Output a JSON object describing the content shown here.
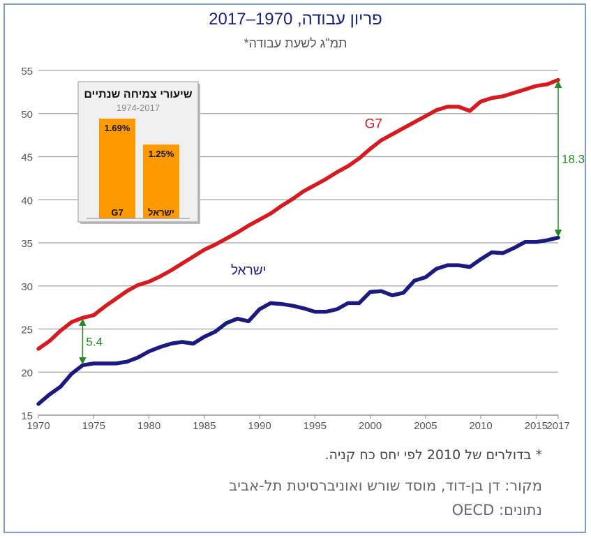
{
  "header": {
    "title": "פריון עבודה, 1970–2017",
    "subtitle": "תמ\"ג לשעת עבודה*"
  },
  "colors": {
    "g7": "#d71920",
    "israel": "#1a1a80",
    "annotation": "#228b22",
    "inset_bar": "#ff9900",
    "grid": "#a0a0a0"
  },
  "chart_data": [
    {
      "type": "line",
      "title": "",
      "xlabel": "",
      "ylabel": "",
      "xlim": [
        1970,
        2017
      ],
      "ylim": [
        15,
        55
      ],
      "x_ticks": [
        "1970",
        "1975",
        "1980",
        "1985",
        "1990",
        "1995",
        "2000",
        "2005",
        "2010",
        "2015",
        "2017"
      ],
      "y_ticks": [
        "15",
        "20",
        "25",
        "30",
        "35",
        "40",
        "45",
        "50",
        "55"
      ],
      "grid": true,
      "x": [
        1970,
        1971,
        1972,
        1973,
        1974,
        1975,
        1976,
        1977,
        1978,
        1979,
        1980,
        1981,
        1982,
        1983,
        1984,
        1985,
        1986,
        1987,
        1988,
        1989,
        1990,
        1991,
        1992,
        1993,
        1994,
        1995,
        1996,
        1997,
        1998,
        1999,
        2000,
        2001,
        2002,
        2003,
        2004,
        2005,
        2006,
        2007,
        2008,
        2009,
        2010,
        2011,
        2012,
        2013,
        2014,
        2015,
        2016,
        2017
      ],
      "series": [
        {
          "name": "G7",
          "values": [
            22.7,
            23.6,
            24.8,
            25.8,
            26.3,
            26.6,
            27.6,
            28.5,
            29.4,
            30.1,
            30.5,
            31.1,
            31.8,
            32.6,
            33.4,
            34.2,
            34.8,
            35.5,
            36.2,
            37.0,
            37.7,
            38.4,
            39.3,
            40.1,
            41.0,
            41.7,
            42.4,
            43.2,
            43.9,
            44.8,
            45.9,
            46.9,
            47.6,
            48.3,
            49.0,
            49.7,
            50.4,
            50.8,
            50.8,
            50.3,
            51.4,
            51.8,
            52.0,
            52.4,
            52.8,
            53.2,
            53.4,
            53.9
          ]
        },
        {
          "name": "ישראל",
          "values": [
            16.3,
            17.4,
            18.3,
            19.8,
            20.8,
            21.0,
            21.0,
            21.0,
            21.2,
            21.7,
            22.4,
            22.9,
            23.3,
            23.5,
            23.3,
            24.1,
            24.7,
            25.7,
            26.2,
            25.9,
            27.3,
            28.0,
            27.9,
            27.7,
            27.4,
            27.0,
            27.0,
            27.3,
            28.0,
            28.0,
            29.3,
            29.4,
            28.9,
            29.2,
            30.6,
            31.0,
            32.0,
            32.4,
            32.4,
            32.2,
            33.1,
            33.9,
            33.8,
            34.4,
            35.1,
            35.1,
            35.3,
            35.6
          ]
        }
      ],
      "annotations": [
        {
          "label": "5.4",
          "x": 1974,
          "y_from": 20.8,
          "y_to": 26.3
        },
        {
          "label": "18.3",
          "x": 2017,
          "y_from": 35.6,
          "y_to": 53.9
        }
      ]
    },
    {
      "type": "bar",
      "title": "שיעורי צמיחה שנתיים",
      "subtitle": "1974-2017",
      "categories": [
        "G7",
        "ישראל"
      ],
      "values": [
        1.69,
        1.25
      ],
      "value_labels": [
        "1.69%",
        "1.25%"
      ],
      "ylim": [
        0,
        1.69
      ]
    }
  ],
  "footer": {
    "note": "* בדולרים של 2010 לפי יחס כח קניה.",
    "source": "מקור: דן בן-דוד, מוסד שורש ואוניברסיטת תל-אביב",
    "data_source": "נתונים: OECD"
  }
}
